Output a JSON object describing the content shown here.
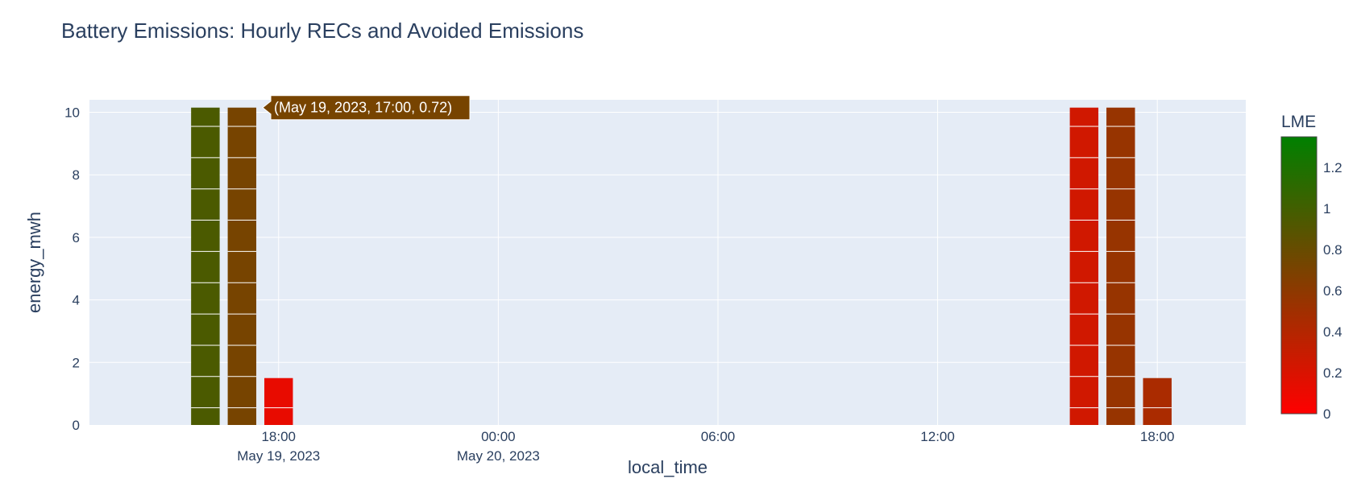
{
  "chart_data": {
    "type": "bar",
    "title": "Battery Emissions: Hourly RECs and Avoided Emissions",
    "xlabel": "local_time",
    "ylabel": "energy_mwh",
    "ylim": [
      0,
      10.4
    ],
    "xlim": [
      "2023-05-19 12:50",
      "2023-05-20 20:25"
    ],
    "y_ticks": [
      "0",
      "2",
      "4",
      "6",
      "8",
      "10"
    ],
    "x_ticks": [
      {
        "t": "2023-05-19 18:00",
        "label": "18:00",
        "sublabel": "May 19, 2023"
      },
      {
        "t": "2023-05-20 00:00",
        "label": "00:00",
        "sublabel": "May 20, 2023"
      },
      {
        "t": "2023-05-20 06:00",
        "label": "06:00",
        "sublabel": ""
      },
      {
        "t": "2023-05-20 12:00",
        "label": "12:00",
        "sublabel": ""
      },
      {
        "t": "2023-05-20 18:00",
        "label": "18:00",
        "sublabel": ""
      }
    ],
    "bar_segment_mwh": 1.0,
    "bars": [
      {
        "time": "2023-05-19 16:00",
        "energy_mwh": 10.15,
        "lme": 0.95
      },
      {
        "time": "2023-05-19 17:00",
        "energy_mwh": 10.15,
        "lme": 0.72
      },
      {
        "time": "2023-05-19 18:00",
        "energy_mwh": 1.5,
        "lme": 0.12
      },
      {
        "time": "2023-05-20 16:00",
        "energy_mwh": 10.15,
        "lme": 0.25
      },
      {
        "time": "2023-05-20 17:00",
        "energy_mwh": 10.15,
        "lme": 0.55
      },
      {
        "time": "2023-05-20 18:00",
        "energy_mwh": 1.5,
        "lme": 0.45
      }
    ],
    "colorbar": {
      "title": "LME",
      "range": [
        0,
        1.35
      ],
      "ticks": [
        "0",
        "0.2",
        "0.4",
        "0.6",
        "0.8",
        "1",
        "1.2"
      ],
      "color_low": "#ff0000",
      "color_mid": "#7f4000",
      "color_high": "#008000"
    },
    "tooltip": {
      "text": "(May 19, 2023, 17:00, 0.72)",
      "bar_index": 1
    },
    "grid": true,
    "plot_bg": "#e5ecf6"
  }
}
